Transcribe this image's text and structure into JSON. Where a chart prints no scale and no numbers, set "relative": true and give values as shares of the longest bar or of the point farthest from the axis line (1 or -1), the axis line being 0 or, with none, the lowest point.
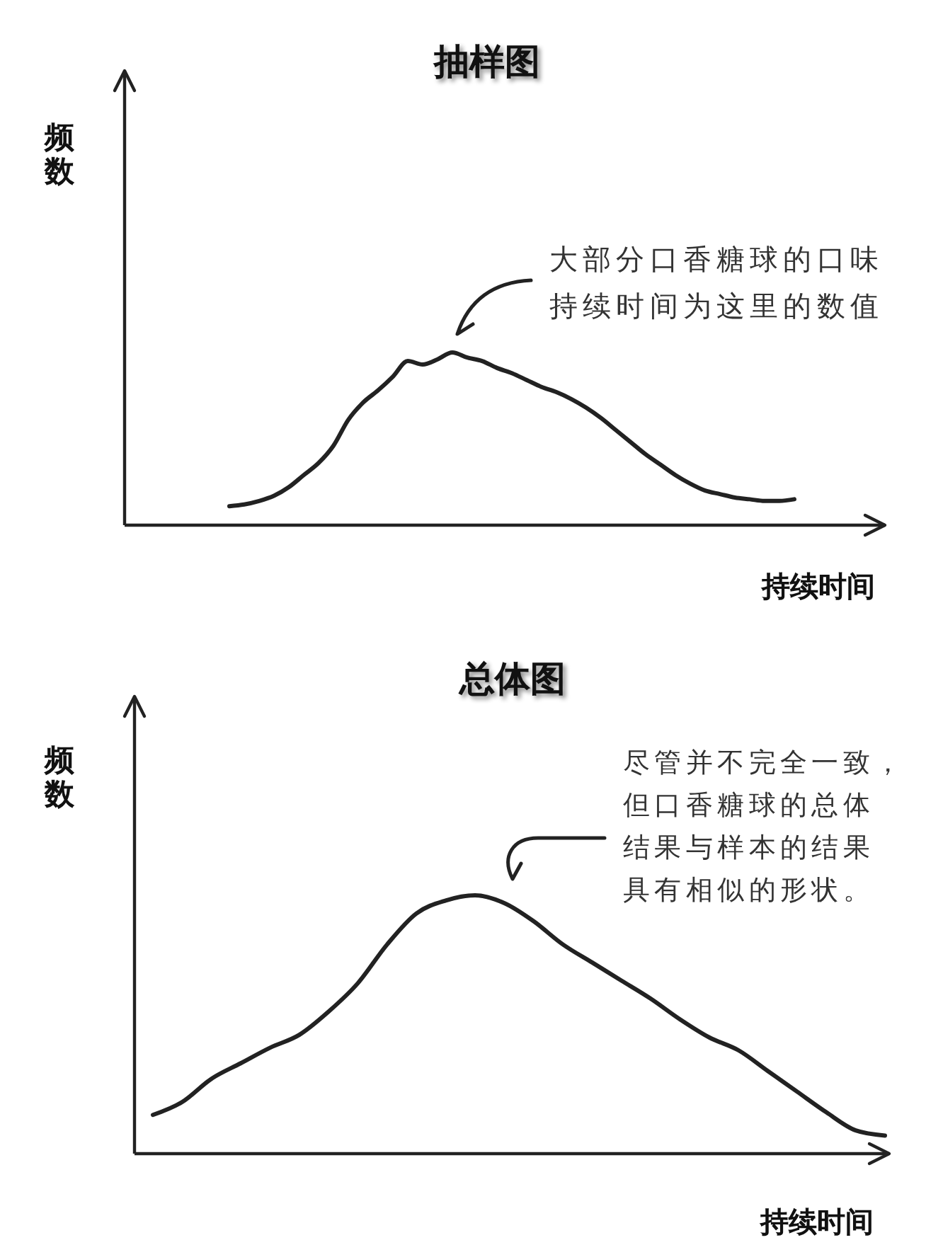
{
  "chart_data": [
    {
      "type": "line",
      "title": "抽样图",
      "xlabel": "持续时间",
      "ylabel": "频数",
      "annotations": [
        "大部分口香糖球的口味持续时间为这里的数值"
      ],
      "relative": true,
      "color": "#222222",
      "categories": [
        null,
        null,
        null,
        null,
        null,
        null,
        null,
        null,
        null,
        null,
        null,
        null,
        null,
        null,
        null,
        null,
        null,
        null,
        null,
        null,
        null,
        null,
        null,
        null,
        null,
        null,
        null,
        null,
        null,
        null,
        null,
        null,
        null,
        null,
        null,
        null,
        null,
        null,
        null
      ],
      "values": [
        0.11,
        0.12,
        0.14,
        0.17,
        0.22,
        0.29,
        0.36,
        0.46,
        0.61,
        0.71,
        0.78,
        0.86,
        0.95,
        0.93,
        0.96,
        1,
        0.97,
        0.95,
        0.91,
        0.88,
        0.84,
        0.8,
        0.77,
        0.73,
        0.68,
        0.62,
        0.55,
        0.48,
        0.41,
        0.35,
        0.29,
        0.24,
        0.2,
        0.18,
        0.16,
        0.15,
        0.14,
        0.14,
        0.15
      ]
    },
    {
      "type": "line",
      "title": "总体图",
      "xlabel": "持续时间",
      "ylabel": "频数",
      "annotations": [
        "尽管并不完全一致，但口香糖球的总体结果与样本的结果具有相似的形状。"
      ],
      "relative": true,
      "color": "#222222",
      "categories": [
        null,
        null,
        null,
        null,
        null,
        null,
        null,
        null,
        null,
        null,
        null,
        null,
        null,
        null,
        null,
        null,
        null,
        null,
        null,
        null,
        null,
        null,
        null,
        null,
        null,
        null
      ],
      "values": [
        0.15,
        0.2,
        0.29,
        0.35,
        0.41,
        0.46,
        0.55,
        0.66,
        0.81,
        0.93,
        0.98,
        1,
        0.97,
        0.9,
        0.81,
        0.74,
        0.67,
        0.6,
        0.52,
        0.45,
        0.4,
        0.32,
        0.24,
        0.16,
        0.09,
        0.07
      ]
    }
  ]
}
